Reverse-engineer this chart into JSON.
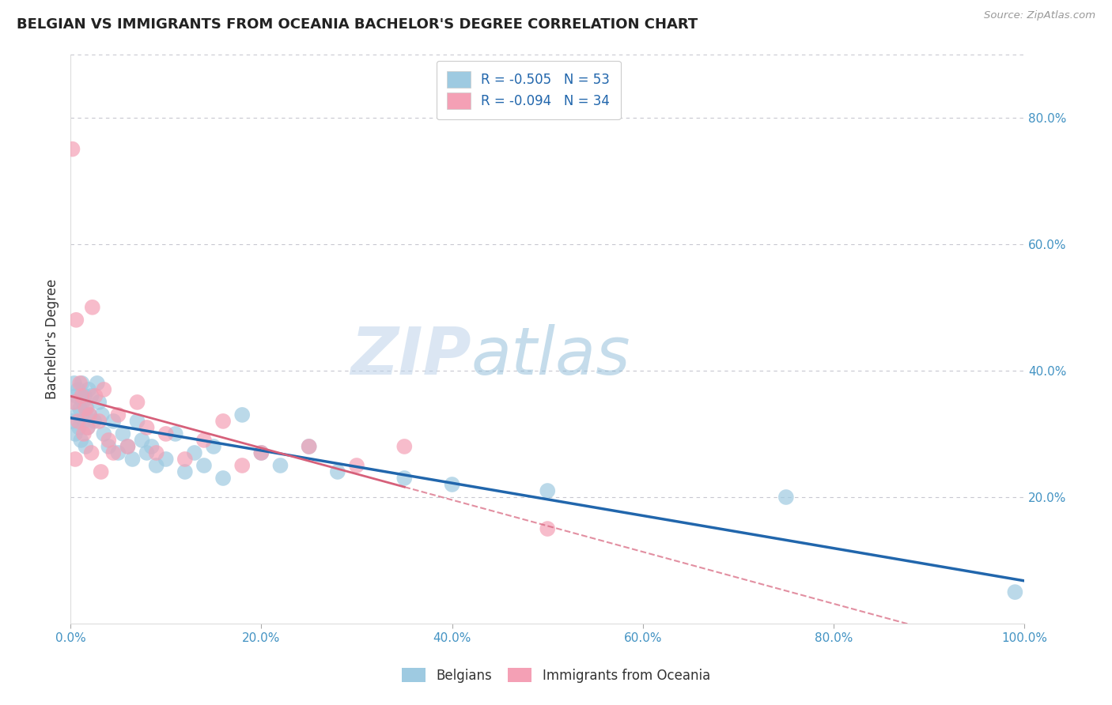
{
  "title": "BELGIAN VS IMMIGRANTS FROM OCEANIA BACHELOR'S DEGREE CORRELATION CHART",
  "source": "Source: ZipAtlas.com",
  "ylabel": "Bachelor's Degree",
  "legend_line1": "R = -0.505   N = 53",
  "legend_line2": "R = -0.094   N = 34",
  "blue_color": "#9ecae1",
  "blue_line_color": "#2166ac",
  "pink_color": "#f4a0b5",
  "pink_line_color": "#d6607a",
  "axis_label_color": "#4393c3",
  "watermark_zip": "ZIP",
  "watermark_atlas": "atlas",
  "belgians_x": [
    0.2,
    0.3,
    0.4,
    0.5,
    0.6,
    0.7,
    0.8,
    0.9,
    1.0,
    1.1,
    1.2,
    1.3,
    1.4,
    1.5,
    1.6,
    1.7,
    1.8,
    1.9,
    2.0,
    2.2,
    2.5,
    2.8,
    3.0,
    3.3,
    3.5,
    4.0,
    4.5,
    5.0,
    5.5,
    6.0,
    6.5,
    7.0,
    7.5,
    8.0,
    8.5,
    9.0,
    10.0,
    11.0,
    12.0,
    13.0,
    14.0,
    15.0,
    16.0,
    20.0,
    22.0,
    25.0,
    28.0,
    35.0,
    40.0,
    50.0,
    75.0,
    99.0,
    18.0
  ],
  "belgians_y": [
    32.0,
    35.0,
    38.0,
    30.0,
    36.0,
    33.0,
    37.0,
    31.0,
    34.0,
    29.0,
    38.0,
    35.0,
    32.0,
    36.0,
    28.0,
    34.0,
    31.0,
    37.0,
    33.0,
    36.0,
    32.0,
    38.0,
    35.0,
    33.0,
    30.0,
    28.0,
    32.0,
    27.0,
    30.0,
    28.0,
    26.0,
    32.0,
    29.0,
    27.0,
    28.0,
    25.0,
    26.0,
    30.0,
    24.0,
    27.0,
    25.0,
    28.0,
    23.0,
    27.0,
    25.0,
    28.0,
    24.0,
    23.0,
    22.0,
    21.0,
    20.0,
    5.0,
    33.0
  ],
  "oceania_x": [
    0.2,
    0.4,
    0.6,
    0.8,
    1.0,
    1.2,
    1.4,
    1.6,
    1.8,
    2.0,
    2.3,
    2.6,
    3.0,
    3.5,
    4.0,
    5.0,
    6.0,
    7.0,
    8.0,
    9.0,
    10.0,
    12.0,
    14.0,
    16.0,
    20.0,
    25.0,
    30.0,
    35.0,
    3.2,
    4.5,
    0.5,
    2.2,
    18.0,
    50.0
  ],
  "oceania_y": [
    75.0,
    35.0,
    48.0,
    32.0,
    38.0,
    36.0,
    30.0,
    34.0,
    31.0,
    33.0,
    50.0,
    36.0,
    32.0,
    37.0,
    29.0,
    33.0,
    28.0,
    35.0,
    31.0,
    27.0,
    30.0,
    26.0,
    29.0,
    32.0,
    27.0,
    28.0,
    25.0,
    28.0,
    24.0,
    27.0,
    26.0,
    27.0,
    25.0,
    15.0
  ],
  "xlim": [
    0.0,
    100.0
  ],
  "ylim": [
    0.0,
    90.0
  ],
  "xtick_positions": [
    0.0,
    20.0,
    40.0,
    60.0,
    80.0,
    100.0
  ],
  "xtick_labels": [
    "0.0%",
    "20.0%",
    "40.0%",
    "60.0%",
    "80.0%",
    "100.0%"
  ],
  "ytick_positions": [
    20.0,
    40.0,
    60.0,
    80.0
  ],
  "ytick_labels": [
    "20.0%",
    "40.0%",
    "60.0%",
    "80.0%"
  ],
  "grid_color": "#c8c8d0",
  "background_color": "#ffffff"
}
